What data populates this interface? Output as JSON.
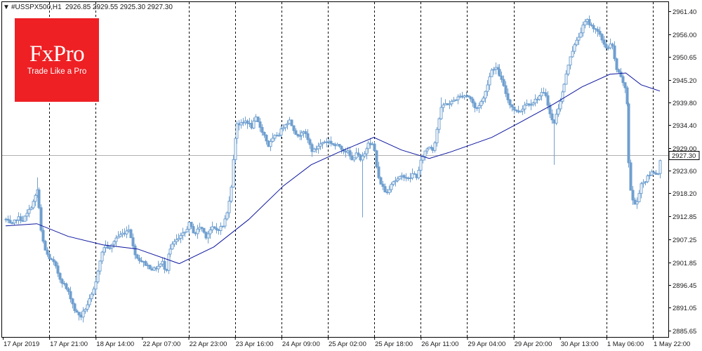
{
  "header": {
    "arrow": "▼",
    "symbol": "#USSPX500,H1",
    "ohlc": "2926.85 2929.55 2925.30 2927.30"
  },
  "logo": {
    "name": "FxPro",
    "tagline": "Trade Like a Pro"
  },
  "colors": {
    "candle": "#6f9fcf",
    "ma_line": "#0d169e",
    "price_line": "#b0b0b0",
    "tag_bg": "#ffffff",
    "logo_bg": "#ee2024"
  },
  "chart_data": {
    "type": "candlestick",
    "symbol": "#USSPX500",
    "timeframe": "H1",
    "last_price": 2927.3,
    "last_price_label": "2927.30",
    "ylim": [
      2884.1,
      2963.8
    ],
    "y_ticks": [
      "2961.40",
      "2956.00",
      "2950.65",
      "2945.20",
      "2939.80",
      "2934.40",
      "2929.00",
      "2923.60",
      "2918.20",
      "2912.85",
      "2907.25",
      "2901.85",
      "2896.45",
      "2891.05",
      "2885.65"
    ],
    "x_labels": [
      "17 Apr 2019",
      "17 Apr 21:00",
      "18 Apr 14:00",
      "22 Apr 07:00",
      "22 Apr 23:00",
      "23 Apr 16:00",
      "24 Apr 09:00",
      "25 Apr 02:00",
      "25 Apr 18:00",
      "26 Apr 11:00",
      "29 Apr 04:00",
      "29 Apr 20:00",
      "30 Apr 13:00",
      "1 May 06:00",
      "1 May 22:00"
    ],
    "separator_labels": [
      "17 Apr 21:00",
      "18 Apr 14:00",
      "22 Apr 23:00",
      "23 Apr 16:00",
      "24 Apr 09:00",
      "25 Apr 02:00",
      "25 Apr 18:00",
      "26 Apr 11:00",
      "29 Apr 04:00",
      "29 Apr 20:00",
      "1 May 06:00",
      "1 May 22:00"
    ],
    "grid": "vertical-dashed-day-separators",
    "close_path": [
      [
        0,
        2912.0
      ],
      [
        8,
        2910.5
      ],
      [
        16,
        2912.5
      ],
      [
        24,
        2911.8
      ],
      [
        32,
        2913.8
      ],
      [
        40,
        2916.5
      ],
      [
        46,
        2919.5
      ],
      [
        50,
        2910.0
      ],
      [
        56,
        2905.0
      ],
      [
        62,
        2903.0
      ],
      [
        70,
        2901.5
      ],
      [
        78,
        2898.0
      ],
      [
        84,
        2896.5
      ],
      [
        92,
        2894.0
      ],
      [
        100,
        2890.0
      ],
      [
        108,
        2889.0
      ],
      [
        116,
        2891.5
      ],
      [
        122,
        2893.5
      ],
      [
        128,
        2896.0
      ],
      [
        134,
        2902.0
      ],
      [
        142,
        2906.0
      ],
      [
        150,
        2905.0
      ],
      [
        158,
        2907.5
      ],
      [
        166,
        2908.5
      ],
      [
        172,
        2909.0
      ],
      [
        178,
        2910.0
      ],
      [
        182,
        2906.0
      ],
      [
        188,
        2903.0
      ],
      [
        196,
        2902.0
      ],
      [
        204,
        2901.0
      ],
      [
        212,
        2900.0
      ],
      [
        220,
        2901.0
      ],
      [
        226,
        2902.0
      ],
      [
        230,
        2899.0
      ],
      [
        234,
        2904.0
      ],
      [
        242,
        2906.5
      ],
      [
        250,
        2907.5
      ],
      [
        258,
        2909.0
      ],
      [
        264,
        2911.0
      ],
      [
        272,
        2908.5
      ],
      [
        280,
        2910.5
      ],
      [
        288,
        2908.0
      ],
      [
        296,
        2910.0
      ],
      [
        304,
        2909.5
      ],
      [
        312,
        2910.5
      ],
      [
        318,
        2913.5
      ],
      [
        324,
        2920.0
      ],
      [
        328,
        2928.0
      ],
      [
        332,
        2935.0
      ],
      [
        338,
        2934.5
      ],
      [
        346,
        2935.5
      ],
      [
        354,
        2934.0
      ],
      [
        360,
        2936.0
      ],
      [
        366,
        2934.0
      ],
      [
        372,
        2932.0
      ],
      [
        378,
        2929.5
      ],
      [
        386,
        2931.5
      ],
      [
        394,
        2932.5
      ],
      [
        400,
        2934.5
      ],
      [
        408,
        2935.5
      ],
      [
        414,
        2933.5
      ],
      [
        420,
        2931.5
      ],
      [
        428,
        2933.5
      ],
      [
        436,
        2930.5
      ],
      [
        442,
        2928.0
      ],
      [
        450,
        2929.5
      ],
      [
        458,
        2930.5
      ],
      [
        466,
        2930.5
      ],
      [
        474,
        2929.5
      ],
      [
        480,
        2929.5
      ],
      [
        486,
        2928.5
      ],
      [
        492,
        2928.0
      ],
      [
        498,
        2926.0
      ],
      [
        504,
        2928.0
      ],
      [
        510,
        2926.0
      ],
      [
        516,
        2927.5
      ],
      [
        522,
        2930.5
      ],
      [
        530,
        2929.5
      ],
      [
        536,
        2922.0
      ],
      [
        542,
        2920.0
      ],
      [
        548,
        2918.0
      ],
      [
        556,
        2921.0
      ],
      [
        564,
        2921.5
      ],
      [
        572,
        2922.5
      ],
      [
        580,
        2921.5
      ],
      [
        586,
        2923.0
      ],
      [
        592,
        2922.0
      ],
      [
        598,
        2926.5
      ],
      [
        604,
        2928.5
      ],
      [
        610,
        2929.5
      ],
      [
        616,
        2928.5
      ],
      [
        622,
        2934.5
      ],
      [
        628,
        2939.0
      ],
      [
        634,
        2939.5
      ],
      [
        640,
        2939.5
      ],
      [
        646,
        2940.5
      ],
      [
        652,
        2941.0
      ],
      [
        658,
        2941.5
      ],
      [
        664,
        2941.5
      ],
      [
        670,
        2940.5
      ],
      [
        676,
        2938.0
      ],
      [
        682,
        2939.5
      ],
      [
        688,
        2941.0
      ],
      [
        694,
        2945.0
      ],
      [
        700,
        2948.0
      ],
      [
        706,
        2948.0
      ],
      [
        712,
        2946.0
      ],
      [
        718,
        2943.0
      ],
      [
        724,
        2940.0
      ],
      [
        730,
        2938.5
      ],
      [
        736,
        2937.5
      ],
      [
        742,
        2938.0
      ],
      [
        748,
        2939.5
      ],
      [
        754,
        2939.5
      ],
      [
        760,
        2940.0
      ],
      [
        766,
        2941.0
      ],
      [
        772,
        2942.0
      ],
      [
        778,
        2941.5
      ],
      [
        782,
        2937.5
      ],
      [
        788,
        2934.5
      ],
      [
        794,
        2938.0
      ],
      [
        800,
        2941.5
      ],
      [
        806,
        2945.5
      ],
      [
        812,
        2950.5
      ],
      [
        818,
        2953.0
      ],
      [
        824,
        2955.0
      ],
      [
        830,
        2957.5
      ],
      [
        836,
        2959.5
      ],
      [
        842,
        2958.0
      ],
      [
        848,
        2957.5
      ],
      [
        854,
        2956.0
      ],
      [
        860,
        2954.0
      ],
      [
        866,
        2952.5
      ],
      [
        872,
        2954.0
      ],
      [
        878,
        2948.0
      ],
      [
        884,
        2946.0
      ],
      [
        890,
        2944.0
      ],
      [
        894,
        2939.5
      ],
      [
        898,
        2921.0
      ],
      [
        902,
        2917.0
      ],
      [
        906,
        2915.5
      ],
      [
        910,
        2916.5
      ],
      [
        914,
        2920.5
      ],
      [
        920,
        2921.0
      ],
      [
        926,
        2922.5
      ],
      [
        932,
        2923.5
      ],
      [
        938,
        2922.5
      ],
      [
        944,
        2927.3
      ]
    ],
    "spike_lows": [
      [
        514,
        2912.5
      ],
      [
        790,
        2925.0
      ]
    ],
    "spike_highs": [
      [
        46,
        2922.0
      ],
      [
        628,
        2941.0
      ]
    ],
    "moving_average": [
      [
        0,
        2910.5
      ],
      [
        45,
        2911.0
      ],
      [
        90,
        2908.0
      ],
      [
        140,
        2906.0
      ],
      [
        190,
        2905.0
      ],
      [
        250,
        2901.5
      ],
      [
        300,
        2905.5
      ],
      [
        350,
        2912.0
      ],
      [
        400,
        2920.0
      ],
      [
        440,
        2925.0
      ],
      [
        480,
        2928.0
      ],
      [
        530,
        2931.5
      ],
      [
        570,
        2928.5
      ],
      [
        610,
        2926.5
      ],
      [
        640,
        2928.0
      ],
      [
        700,
        2931.5
      ],
      [
        740,
        2935.0
      ],
      [
        790,
        2939.5
      ],
      [
        830,
        2943.5
      ],
      [
        870,
        2946.5
      ],
      [
        893,
        2946.8
      ],
      [
        915,
        2944.0
      ],
      [
        942,
        2942.5
      ]
    ]
  }
}
